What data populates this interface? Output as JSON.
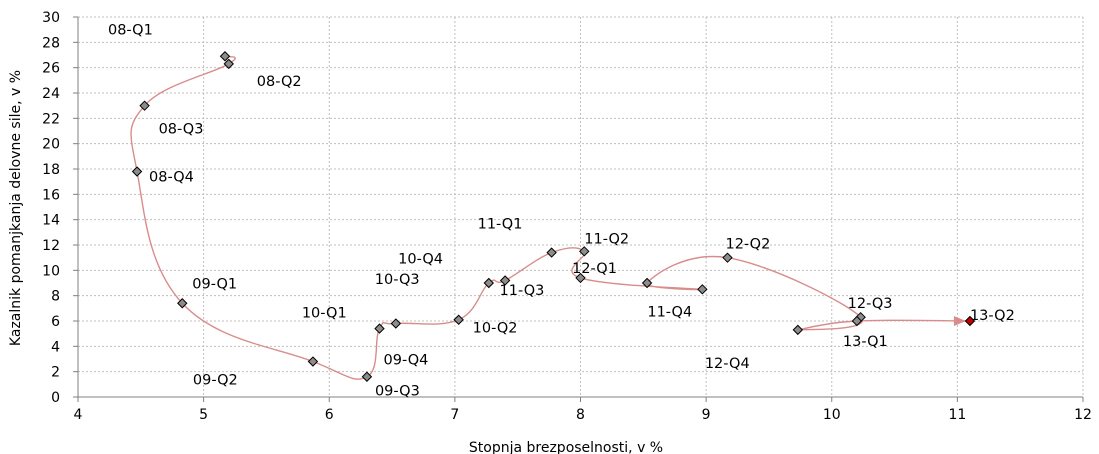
{
  "chart_data": {
    "type": "scatter",
    "title": "",
    "xlabel": "Stopnja brezposelnosti, v %",
    "ylabel": "Kazalnik pomanjkanja delovne sile, v %",
    "xlim": [
      4,
      12
    ],
    "ylim": [
      0,
      30
    ],
    "x_ticks": [
      "4",
      "5",
      "6",
      "7",
      "8",
      "9",
      "10",
      "11",
      "12"
    ],
    "y_ticks": [
      "0",
      "2",
      "4",
      "6",
      "8",
      "10",
      "12",
      "14",
      "16",
      "18",
      "20",
      "22",
      "24",
      "26",
      "28",
      "30"
    ],
    "grid": true,
    "line_color": "#d98c8c",
    "marker_color": "#8c8c8c",
    "last_marker_color": "#c00000",
    "points": [
      {
        "label": "08-Q1",
        "x": 5.17,
        "y": 26.9
      },
      {
        "label": "08-Q2",
        "x": 5.2,
        "y": 26.3
      },
      {
        "label": "08-Q3",
        "x": 4.53,
        "y": 23.0
      },
      {
        "label": "08-Q4",
        "x": 4.47,
        "y": 17.8
      },
      {
        "label": "09-Q1",
        "x": 4.83,
        "y": 7.4
      },
      {
        "label": "09-Q2",
        "x": 5.87,
        "y": 2.8
      },
      {
        "label": "09-Q3",
        "x": 6.3,
        "y": 1.6
      },
      {
        "label": "09-Q4",
        "x": 6.4,
        "y": 5.4
      },
      {
        "label": "10-Q1",
        "x": 6.53,
        "y": 5.8
      },
      {
        "label": "10-Q2",
        "x": 7.03,
        "y": 6.1
      },
      {
        "label": "10-Q3",
        "x": 7.27,
        "y": 9.0
      },
      {
        "label": "10-Q4",
        "x": 7.4,
        "y": 9.2
      },
      {
        "label": "11-Q1",
        "x": 7.77,
        "y": 11.4
      },
      {
        "label": "11-Q2",
        "x": 8.03,
        "y": 11.5
      },
      {
        "label": "11-Q3",
        "x": 8.0,
        "y": 9.4
      },
      {
        "label": "11-Q4",
        "x": 8.97,
        "y": 8.5
      },
      {
        "label": "12-Q1",
        "x": 8.53,
        "y": 9.0
      },
      {
        "label": "12-Q2",
        "x": 9.17,
        "y": 11.0
      },
      {
        "label": "12-Q3",
        "x": 10.23,
        "y": 6.3
      },
      {
        "label": "12-Q4",
        "x": 9.73,
        "y": 5.3
      },
      {
        "label": "13-Q1",
        "x": 10.2,
        "y": 6.0
      },
      {
        "label": "13-Q2",
        "x": 11.1,
        "y": 6.0
      }
    ]
  }
}
